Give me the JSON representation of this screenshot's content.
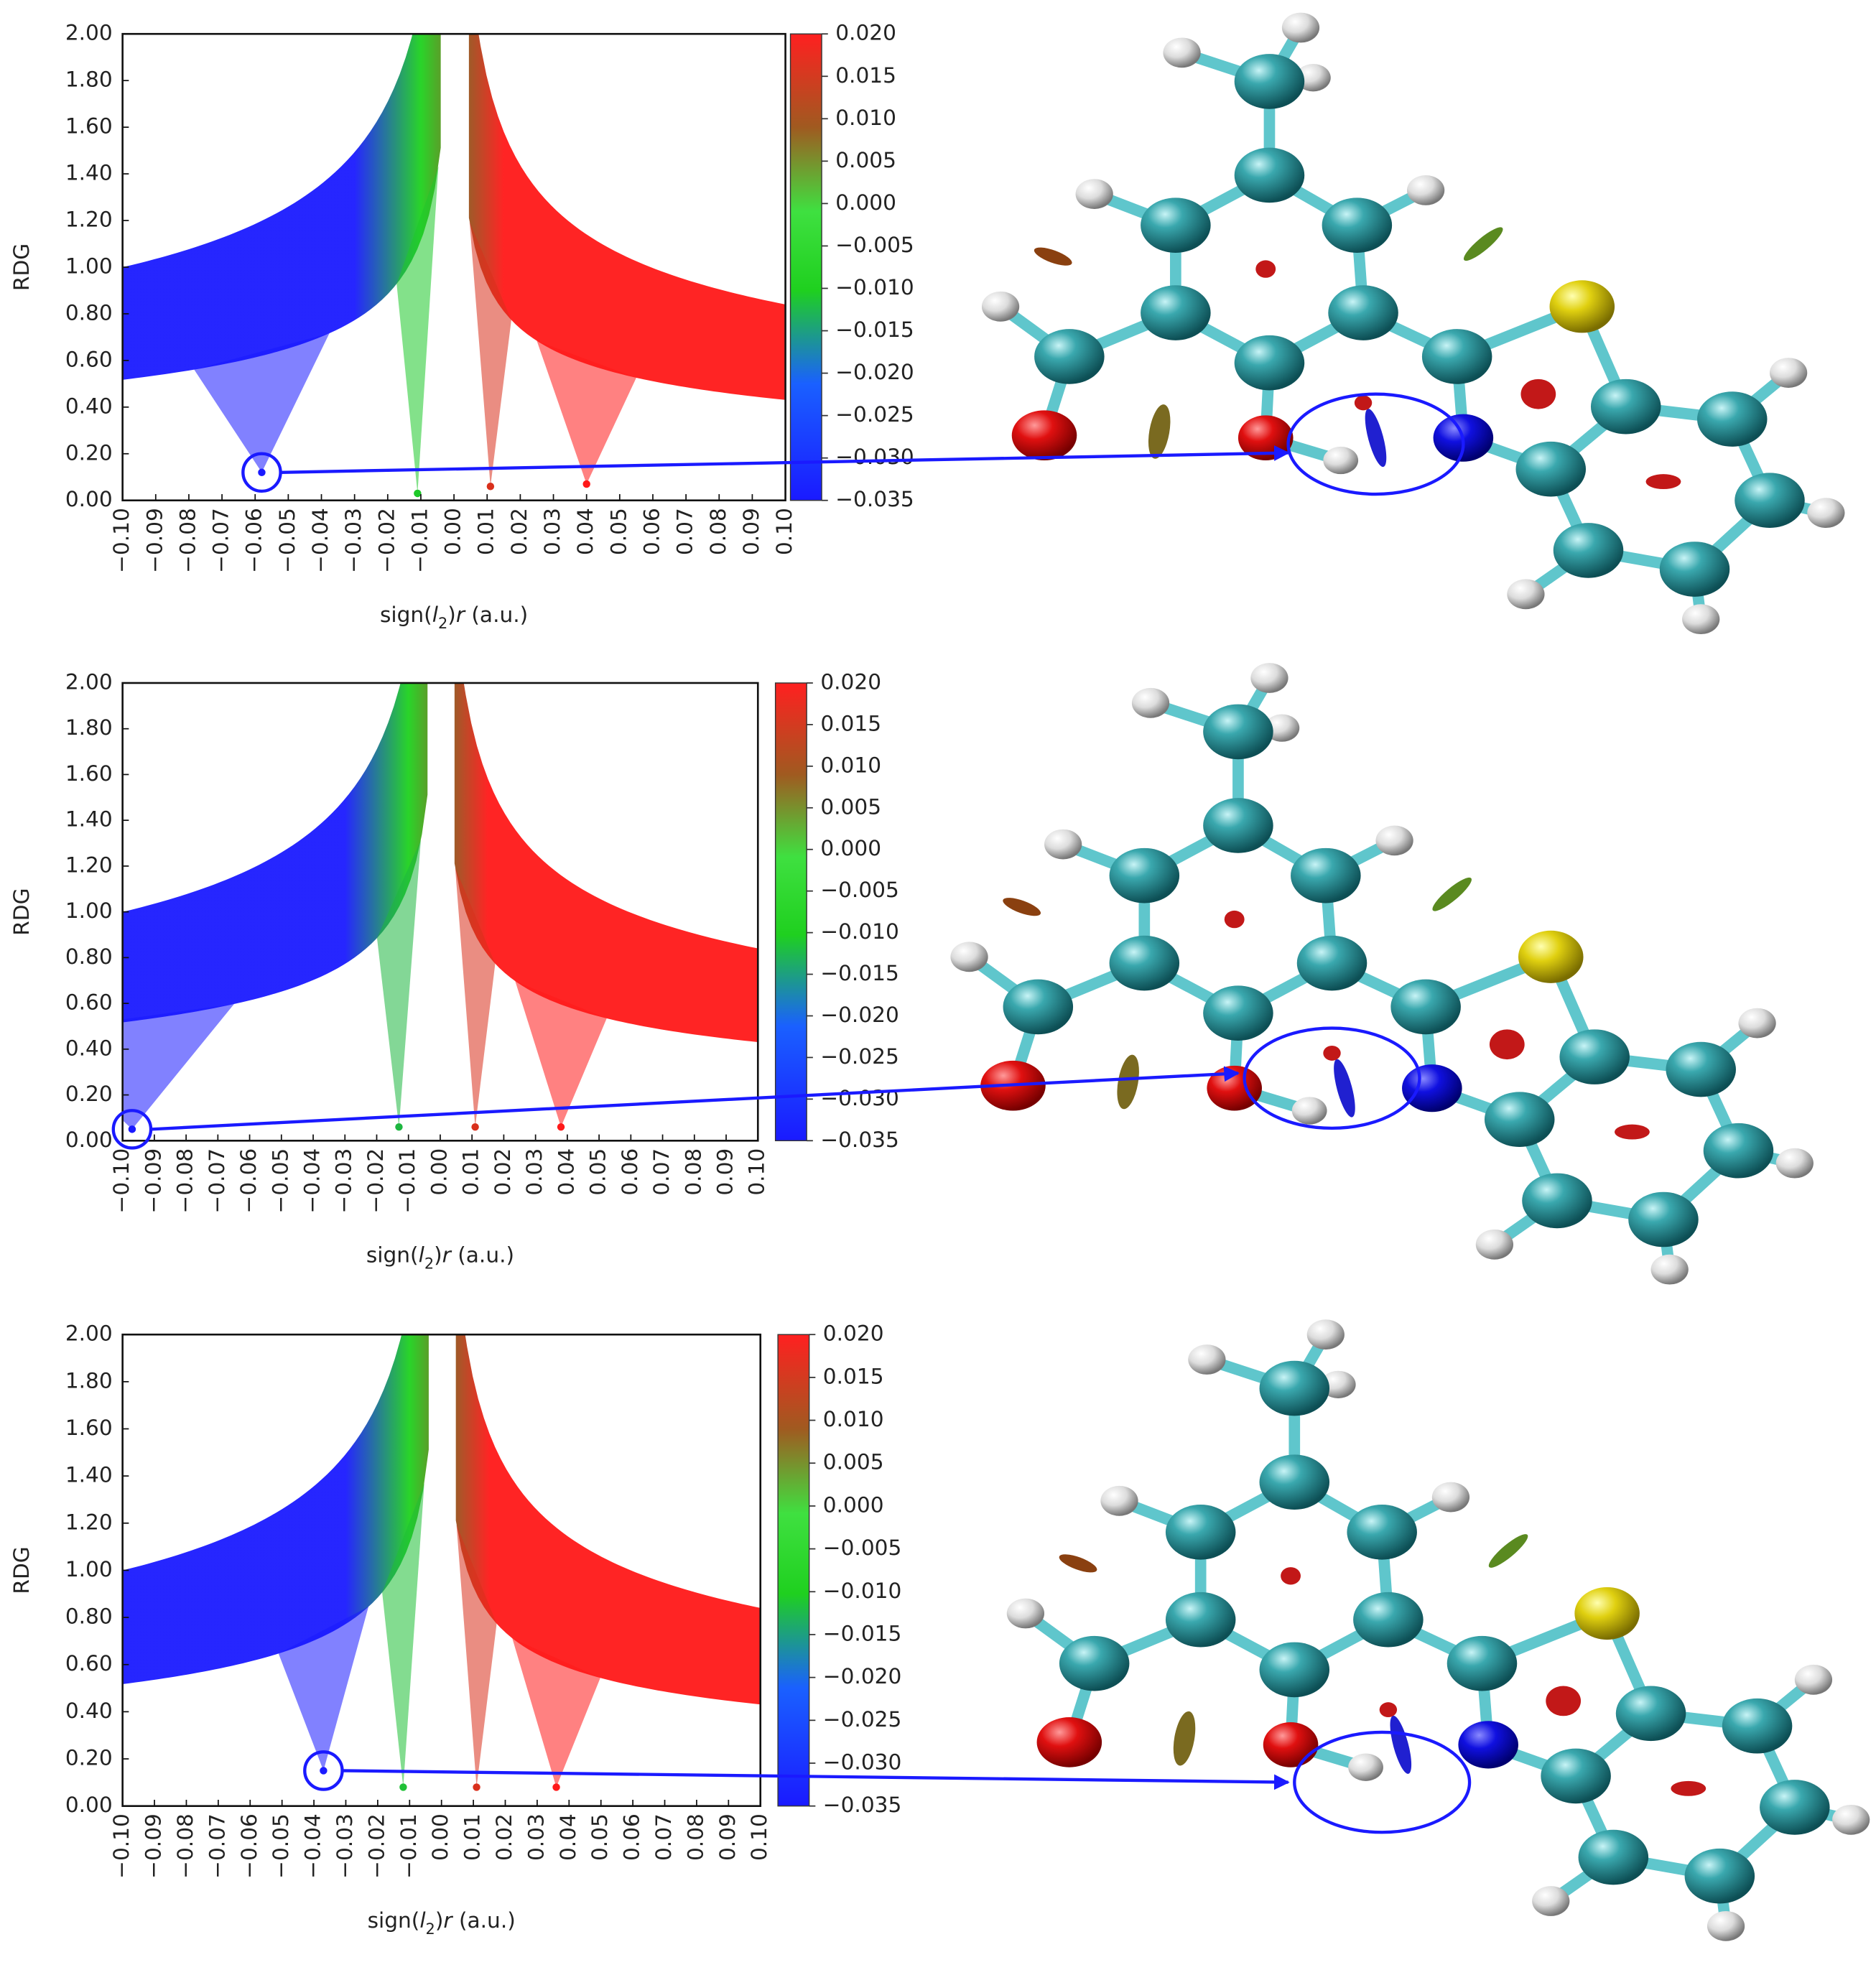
{
  "chart_data": [
    {
      "type": "scatter",
      "ylabel": "RDG",
      "xlabel": [
        "sign(",
        "l",
        "2",
        ")",
        "r",
        " (a.u.)"
      ],
      "x": [
        -0.058,
        -0.011,
        0.011,
        0.04
      ],
      "values": [
        0.12,
        0.03,
        0.06,
        0.07
      ],
      "xlim": [
        -0.1,
        0.1
      ],
      "ylim": [
        0,
        2
      ],
      "xticks": [
        {
          "value": -0.1,
          "label": "−0.10"
        },
        {
          "value": -0.09,
          "label": "−0.09"
        },
        {
          "value": -0.08,
          "label": "−0.08"
        },
        {
          "value": -0.07,
          "label": "−0.07"
        },
        {
          "value": -0.06,
          "label": "−0.06"
        },
        {
          "value": -0.05,
          "label": "−0.05"
        },
        {
          "value": -0.04,
          "label": "−0.04"
        },
        {
          "value": -0.03,
          "label": "−0.03"
        },
        {
          "value": -0.02,
          "label": "−0.02"
        },
        {
          "value": -0.01,
          "label": "−0.01"
        },
        {
          "value": 0,
          "label": "0.00"
        },
        {
          "value": 0.01,
          "label": "0.01"
        },
        {
          "value": 0.02,
          "label": "0.02"
        },
        {
          "value": 0.03,
          "label": "0.03"
        },
        {
          "value": 0.04,
          "label": "0.04"
        },
        {
          "value": 0.05,
          "label": "0.05"
        },
        {
          "value": 0.06,
          "label": "0.06"
        },
        {
          "value": 0.07,
          "label": "0.07"
        },
        {
          "value": 0.08,
          "label": "0.08"
        },
        {
          "value": 0.09,
          "label": "0.09"
        },
        {
          "value": 0.1,
          "label": "0.10"
        }
      ],
      "yticks": [
        {
          "value": 0,
          "label": "0.00"
        },
        {
          "value": 0.2,
          "label": "0.20"
        },
        {
          "value": 0.4,
          "label": "0.40"
        },
        {
          "value": 0.6,
          "label": "0.60"
        },
        {
          "value": 0.8,
          "label": "0.80"
        },
        {
          "value": 1,
          "label": "1.00"
        },
        {
          "value": 1.2,
          "label": "1.20"
        },
        {
          "value": 1.4,
          "label": "1.40"
        },
        {
          "value": 1.6,
          "label": "1.60"
        },
        {
          "value": 1.8,
          "label": "1.80"
        },
        {
          "value": 2,
          "label": "2.00"
        }
      ],
      "colorbar_lim": [
        -0.035,
        0.02
      ],
      "colorbar_ticks": [
        {
          "value": 0.02,
          "label": "0.020"
        },
        {
          "value": 0.015,
          "label": "0.015"
        },
        {
          "value": 0.01,
          "label": "0.010"
        },
        {
          "value": 0.005,
          "label": "0.005"
        },
        {
          "value": 0,
          "label": "0.000"
        },
        {
          "value": -0.005,
          "label": "−0.005"
        },
        {
          "value": -0.01,
          "label": "−0.010"
        },
        {
          "value": -0.015,
          "label": "−0.015"
        },
        {
          "value": -0.02,
          "label": "−0.020"
        },
        {
          "value": -0.025,
          "label": "−0.025"
        },
        {
          "value": -0.03,
          "label": "−0.030"
        },
        {
          "value": -0.035,
          "label": "−0.035"
        }
      ]
    },
    {
      "type": "scatter",
      "ylabel": "RDG",
      "xlabel": [
        "sign(",
        "l",
        "2",
        ")",
        "r",
        " (a.u.)"
      ],
      "x": [
        -0.097,
        -0.013,
        0.011,
        0.038
      ],
      "values": [
        0.05,
        0.06,
        0.06,
        0.06
      ],
      "xlim": [
        -0.1,
        0.1
      ],
      "ylim": [
        0,
        2
      ],
      "xticks": [
        {
          "value": -0.1,
          "label": "−0.10"
        },
        {
          "value": -0.09,
          "label": "−0.09"
        },
        {
          "value": -0.08,
          "label": "−0.08"
        },
        {
          "value": -0.07,
          "label": "−0.07"
        },
        {
          "value": -0.06,
          "label": "−0.06"
        },
        {
          "value": -0.05,
          "label": "−0.05"
        },
        {
          "value": -0.04,
          "label": "−0.04"
        },
        {
          "value": -0.03,
          "label": "−0.03"
        },
        {
          "value": -0.02,
          "label": "−0.02"
        },
        {
          "value": -0.01,
          "label": "−0.01"
        },
        {
          "value": 0,
          "label": "0.00"
        },
        {
          "value": 0.01,
          "label": "0.01"
        },
        {
          "value": 0.02,
          "label": "0.02"
        },
        {
          "value": 0.03,
          "label": "0.03"
        },
        {
          "value": 0.04,
          "label": "0.04"
        },
        {
          "value": 0.05,
          "label": "0.05"
        },
        {
          "value": 0.06,
          "label": "0.06"
        },
        {
          "value": 0.07,
          "label": "0.07"
        },
        {
          "value": 0.08,
          "label": "0.08"
        },
        {
          "value": 0.09,
          "label": "0.09"
        },
        {
          "value": 0.1,
          "label": "0.10"
        }
      ],
      "yticks": [
        {
          "value": 0,
          "label": "0.00"
        },
        {
          "value": 0.2,
          "label": "0.20"
        },
        {
          "value": 0.4,
          "label": "0.40"
        },
        {
          "value": 0.6,
          "label": "0.60"
        },
        {
          "value": 0.8,
          "label": "0.80"
        },
        {
          "value": 1,
          "label": "1.00"
        },
        {
          "value": 1.2,
          "label": "1.20"
        },
        {
          "value": 1.4,
          "label": "1.40"
        },
        {
          "value": 1.6,
          "label": "1.60"
        },
        {
          "value": 1.8,
          "label": "1.80"
        },
        {
          "value": 2,
          "label": "2.00"
        }
      ],
      "colorbar_lim": [
        -0.035,
        0.02
      ],
      "colorbar_ticks": [
        {
          "value": 0.02,
          "label": "0.020"
        },
        {
          "value": 0.015,
          "label": "0.015"
        },
        {
          "value": 0.01,
          "label": "0.010"
        },
        {
          "value": 0.005,
          "label": "0.005"
        },
        {
          "value": 0,
          "label": "0.000"
        },
        {
          "value": -0.005,
          "label": "−0.005"
        },
        {
          "value": -0.01,
          "label": "−0.010"
        },
        {
          "value": -0.015,
          "label": "−0.015"
        },
        {
          "value": -0.02,
          "label": "−0.020"
        },
        {
          "value": -0.025,
          "label": "−0.025"
        },
        {
          "value": -0.03,
          "label": "−0.030"
        },
        {
          "value": -0.035,
          "label": "−0.035"
        }
      ]
    },
    {
      "type": "scatter",
      "ylabel": "RDG",
      "xlabel": [
        "sign(",
        "l",
        "2",
        ")",
        "r",
        " (a.u.)"
      ],
      "x": [
        -0.037,
        -0.012,
        0.011,
        0.036
      ],
      "values": [
        0.15,
        0.08,
        0.08,
        0.08
      ],
      "xlim": [
        -0.1,
        0.1
      ],
      "ylim": [
        0,
        2
      ],
      "xticks": [
        {
          "value": -0.1,
          "label": "−0.10"
        },
        {
          "value": -0.09,
          "label": "−0.09"
        },
        {
          "value": -0.08,
          "label": "−0.08"
        },
        {
          "value": -0.07,
          "label": "−0.07"
        },
        {
          "value": -0.06,
          "label": "−0.06"
        },
        {
          "value": -0.05,
          "label": "−0.05"
        },
        {
          "value": -0.04,
          "label": "−0.04"
        },
        {
          "value": -0.03,
          "label": "−0.03"
        },
        {
          "value": -0.02,
          "label": "−0.02"
        },
        {
          "value": -0.01,
          "label": "−0.01"
        },
        {
          "value": 0,
          "label": "0.00"
        },
        {
          "value": 0.01,
          "label": "0.01"
        },
        {
          "value": 0.02,
          "label": "0.02"
        },
        {
          "value": 0.03,
          "label": "0.03"
        },
        {
          "value": 0.04,
          "label": "0.04"
        },
        {
          "value": 0.05,
          "label": "0.05"
        },
        {
          "value": 0.06,
          "label": "0.06"
        },
        {
          "value": 0.07,
          "label": "0.07"
        },
        {
          "value": 0.08,
          "label": "0.08"
        },
        {
          "value": 0.09,
          "label": "0.09"
        },
        {
          "value": 0.1,
          "label": "0.10"
        }
      ],
      "yticks": [
        {
          "value": 0,
          "label": "0.00"
        },
        {
          "value": 0.2,
          "label": "0.20"
        },
        {
          "value": 0.4,
          "label": "0.40"
        },
        {
          "value": 0.6,
          "label": "0.60"
        },
        {
          "value": 0.8,
          "label": "0.80"
        },
        {
          "value": 1,
          "label": "1.00"
        },
        {
          "value": 1.2,
          "label": "1.20"
        },
        {
          "value": 1.4,
          "label": "1.40"
        },
        {
          "value": 1.6,
          "label": "1.60"
        },
        {
          "value": 1.8,
          "label": "1.80"
        },
        {
          "value": 2,
          "label": "2.00"
        }
      ],
      "colorbar_lim": [
        -0.035,
        0.02
      ],
      "colorbar_ticks": [
        {
          "value": 0.02,
          "label": "0.020"
        },
        {
          "value": 0.015,
          "label": "0.015"
        },
        {
          "value": 0.01,
          "label": "0.010"
        },
        {
          "value": 0.005,
          "label": "0.005"
        },
        {
          "value": 0,
          "label": "0.000"
        },
        {
          "value": -0.005,
          "label": "−0.005"
        },
        {
          "value": -0.01,
          "label": "−0.010"
        },
        {
          "value": -0.015,
          "label": "−0.015"
        },
        {
          "value": -0.02,
          "label": "−0.020"
        },
        {
          "value": -0.025,
          "label": "−0.025"
        },
        {
          "value": -0.03,
          "label": "−0.030"
        },
        {
          "value": -0.035,
          "label": "−0.035"
        }
      ]
    }
  ]
}
